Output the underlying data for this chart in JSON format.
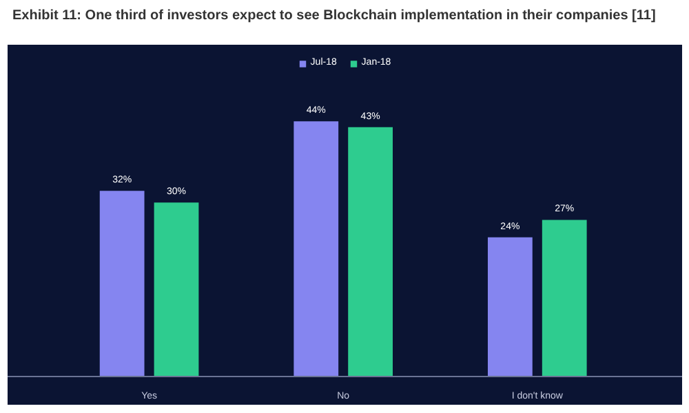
{
  "chart_data": {
    "type": "bar",
    "title": "Exhibit 11: One third of investors expect to see Blockchain implementation in their companies [11]",
    "categories": [
      "Yes",
      "No",
      "I don't know"
    ],
    "series": [
      {
        "name": "Jul-18",
        "color": "#8585f0",
        "values": [
          32,
          44,
          24
        ],
        "value_labels": [
          "32%",
          "44%",
          "24%"
        ]
      },
      {
        "name": "Jan-18",
        "color": "#2ecc8f",
        "values": [
          30,
          43,
          27
        ],
        "value_labels": [
          "30%",
          "43%",
          "27%"
        ]
      }
    ],
    "legend": "top",
    "grid": false,
    "tick_labels": "x"
  }
}
